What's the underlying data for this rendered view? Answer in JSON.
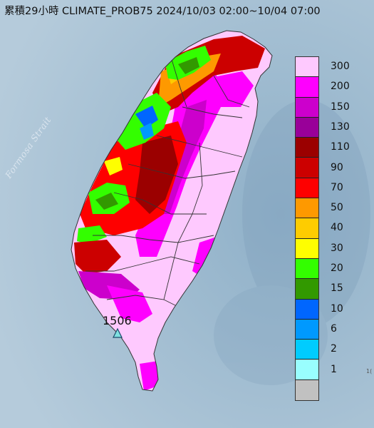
{
  "title": "累積29小時 CLIMATE_PROB75 2024/10/03 02:00~10/04 07:00",
  "sea_label": "Formosa Strait",
  "max_station": {
    "value": "1506",
    "icon": "triangle-station-icon"
  },
  "edge_mark": "1(",
  "legend": {
    "levels": [
      {
        "label": "300",
        "color": "#fec9fe"
      },
      {
        "label": "200",
        "color": "#fe00fe"
      },
      {
        "label": "150",
        "color": "#cc00cc"
      },
      {
        "label": "130",
        "color": "#990099"
      },
      {
        "label": "110",
        "color": "#9b0000"
      },
      {
        "label": "90",
        "color": "#cc0000"
      },
      {
        "label": "70",
        "color": "#fe0000"
      },
      {
        "label": "50",
        "color": "#fe9900"
      },
      {
        "label": "40",
        "color": "#fecc00"
      },
      {
        "label": "30",
        "color": "#fefe00"
      },
      {
        "label": "20",
        "color": "#33fe00"
      },
      {
        "label": "15",
        "color": "#329900"
      },
      {
        "label": "10",
        "color": "#0066fe"
      },
      {
        "label": "6",
        "color": "#0099fe"
      },
      {
        "label": "2",
        "color": "#00ccfe"
      },
      {
        "label": "1",
        "color": "#99fefe"
      },
      {
        "label": "",
        "color": "#c1c1c1"
      }
    ]
  },
  "colors": {
    "sea": "#a9c3d6",
    "land_base": "#fec9fe",
    "border": "#333333"
  }
}
